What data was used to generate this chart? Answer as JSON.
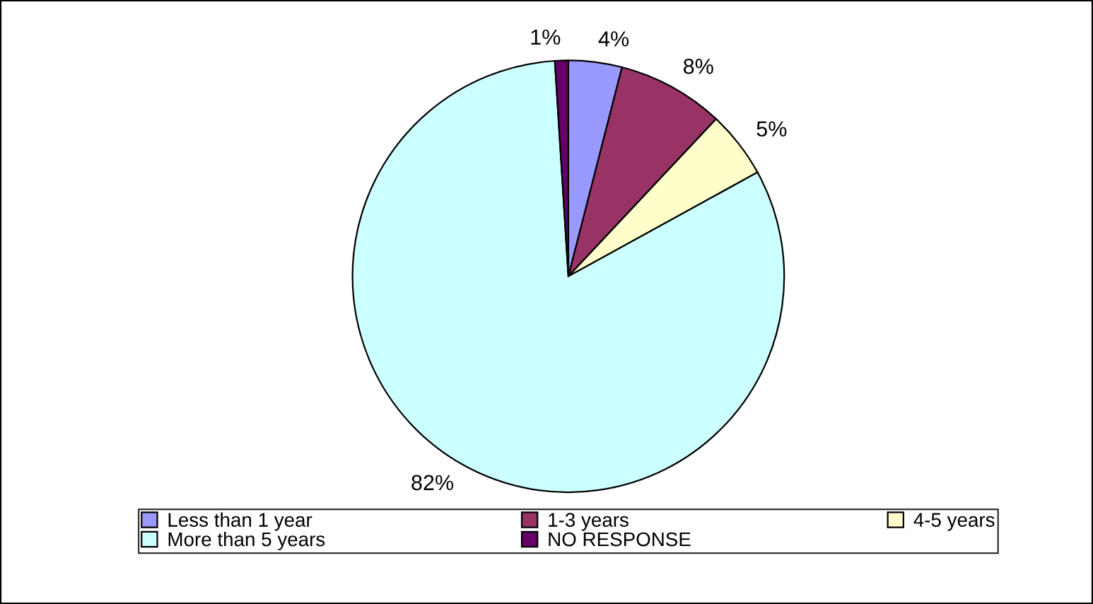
{
  "chart_data": {
    "type": "pie",
    "categories": [
      "Less than 1 year",
      "1-3 years",
      "4-5 years",
      "More than 5 years",
      "NO RESPONSE"
    ],
    "values": [
      4,
      8,
      5,
      82,
      1
    ],
    "value_labels": [
      "4%",
      "8%",
      "5%",
      "82%",
      "1%"
    ],
    "colors": [
      "#9999ff",
      "#993366",
      "#ffffcc",
      "#ccffff",
      "#660066"
    ],
    "legend": "bottom"
  }
}
